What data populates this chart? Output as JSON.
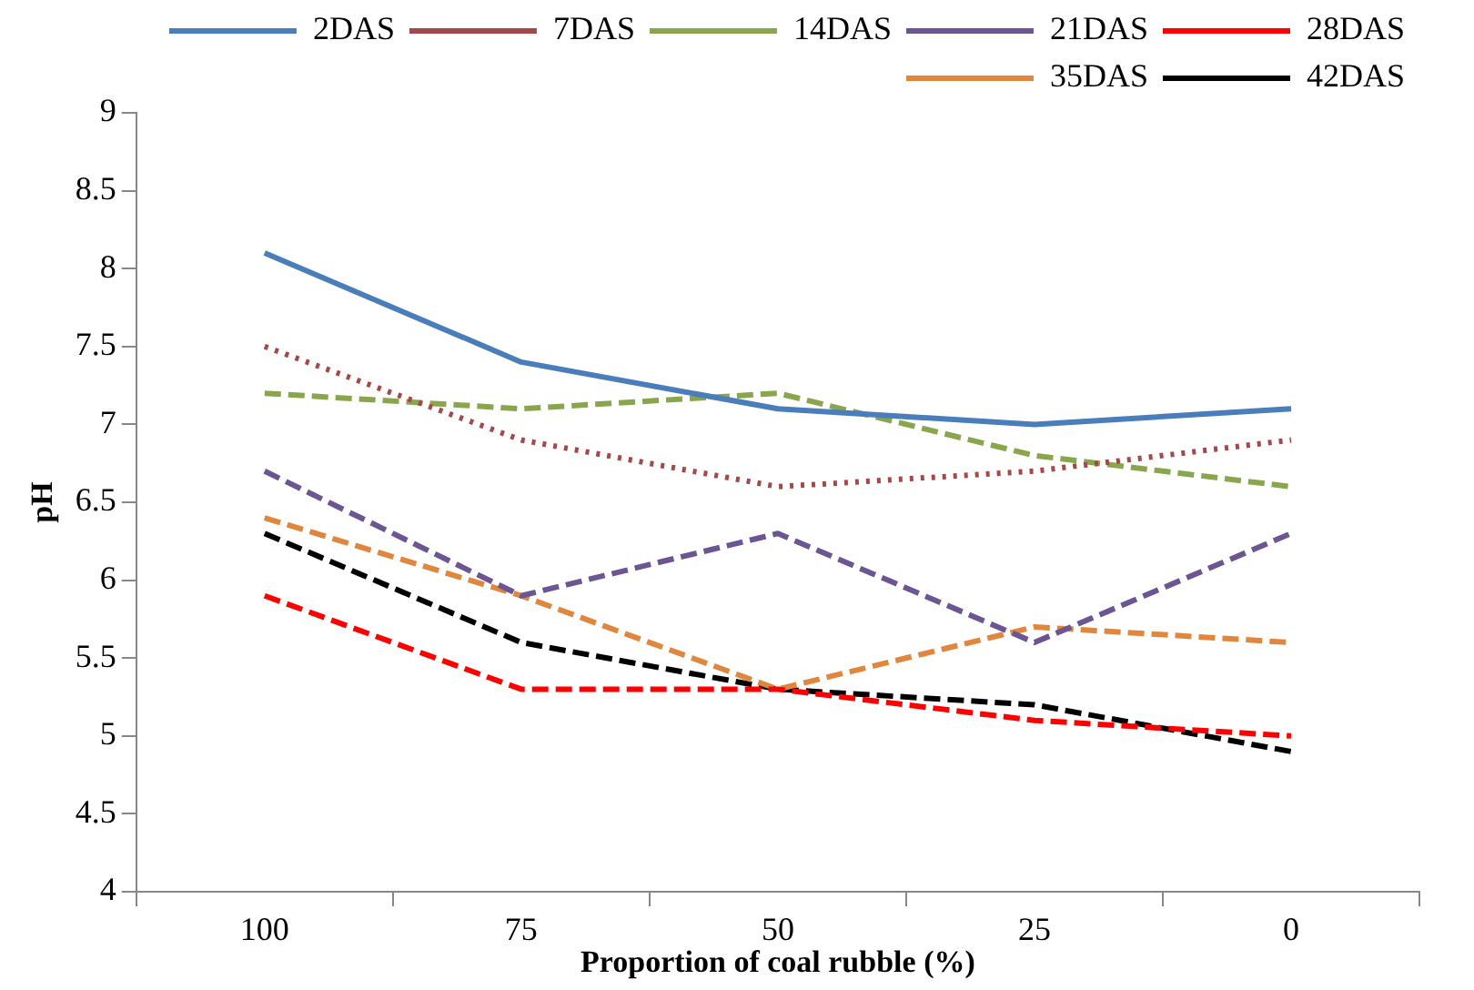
{
  "chart_data": {
    "type": "line",
    "xlabel": "Proportion of coal rubble (%)",
    "ylabel": "pH",
    "categories": [
      "100",
      "75",
      "50",
      "25",
      "0"
    ],
    "ylim": [
      4,
      9
    ],
    "yticks": [
      4,
      {
        "value": 4.5,
        "label": "4.5"
      },
      5,
      {
        "value": 5.5,
        "label": "5.5"
      },
      6,
      {
        "value": 6.5,
        "label": "6.5"
      },
      7,
      {
        "value": 7.5,
        "label": "7.5"
      },
      8,
      {
        "value": 8.5,
        "label": "8.5"
      },
      9
    ],
    "grid": false,
    "legend": "top",
    "marker": "none",
    "series": [
      {
        "name": "2DAS",
        "color": "#4a7ebb",
        "line_style": "solid",
        "values": [
          8.1,
          7.4,
          7.1,
          7.0,
          7.1
        ]
      },
      {
        "name": "7DAS",
        "color": "#a5484a",
        "line_style": "dotted",
        "values": [
          7.5,
          6.9,
          6.6,
          6.7,
          6.9
        ]
      },
      {
        "name": "14DAS",
        "color": "#8aa64d",
        "line_style": "dashed",
        "values": [
          7.2,
          7.1,
          7.2,
          6.8,
          6.6
        ]
      },
      {
        "name": "21DAS",
        "color": "#6c5593",
        "line_style": "dashed",
        "values": [
          6.7,
          5.9,
          6.3,
          5.6,
          6.3
        ]
      },
      {
        "name": "28DAS",
        "color": "#ff0000",
        "line_style": "dashed",
        "values": [
          5.9,
          5.3,
          5.3,
          5.1,
          5.0
        ]
      },
      {
        "name": "35DAS",
        "color": "#e0863d",
        "line_style": "dashed",
        "values": [
          6.4,
          5.9,
          5.3,
          5.7,
          5.6
        ]
      },
      {
        "name": "42DAS",
        "color": "#000000",
        "line_style": "dashed",
        "values": [
          6.3,
          5.6,
          5.3,
          5.2,
          4.9
        ]
      }
    ]
  }
}
